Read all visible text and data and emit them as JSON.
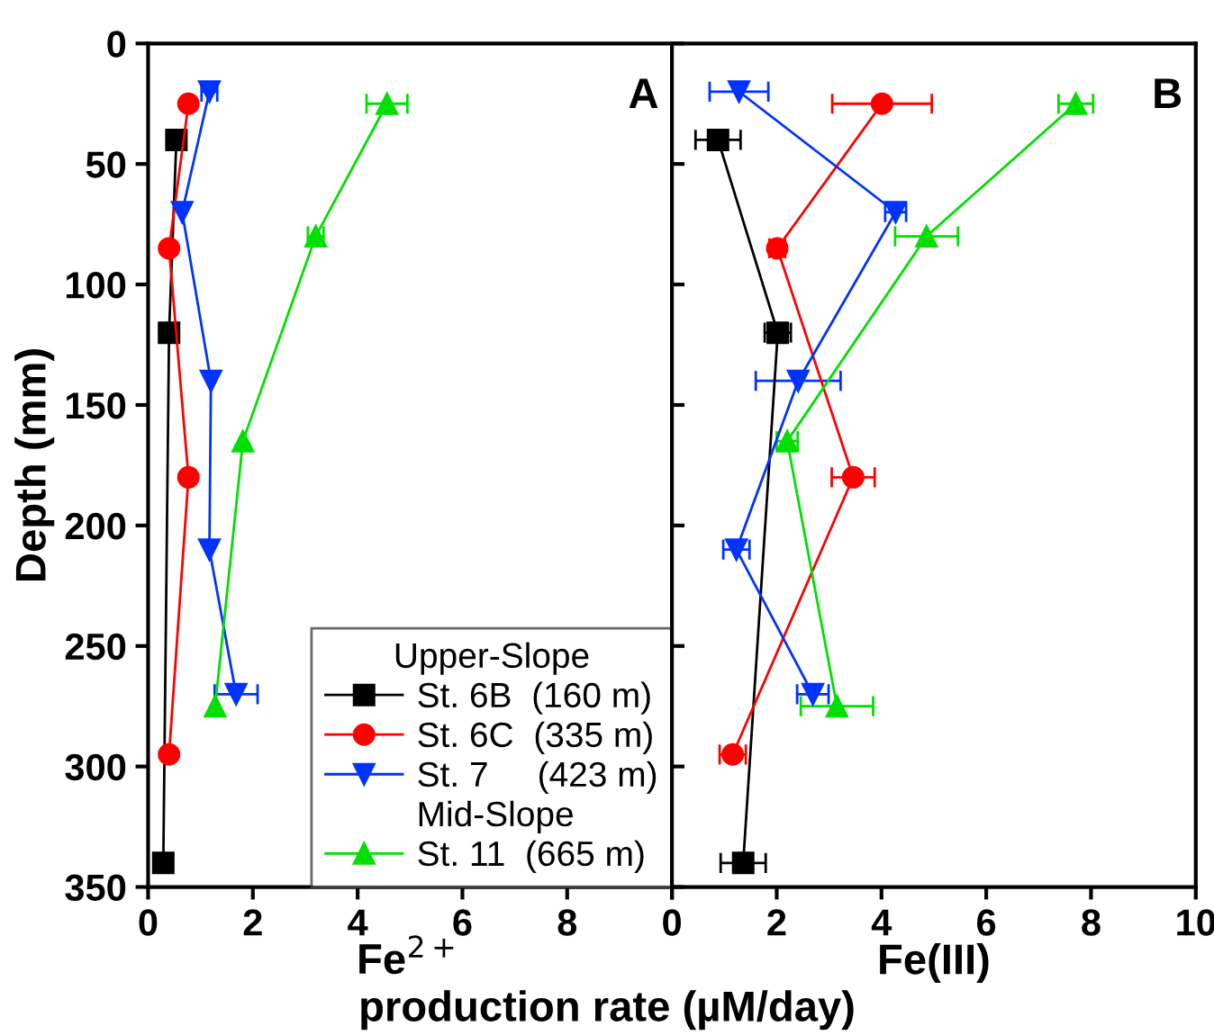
{
  "chart_data": [
    {
      "type": "line",
      "title": "A",
      "xlabel": "Fe$^{2+}$",
      "ylabel": "Depth (mm)",
      "legend_title": "Upper-Slope",
      "annotations": [
        "Mid-Slope"
      ],
      "legend": "bottom right",
      "xlim": [
        0,
        10
      ],
      "xticks": [
        0,
        2,
        4,
        6,
        8,
        {
          "value": 10,
          "label": null
        }
      ],
      "ylim": [
        350,
        0
      ],
      "yticks": [
        0,
        50,
        100,
        150,
        200,
        250,
        300,
        350
      ],
      "grid": false,
      "series": [
        {
          "name": "St. 6B  (160 m)",
          "color": "#000000",
          "marker": "square",
          "x": [
            0.54,
            0.4,
            0.29
          ],
          "values": [
            40,
            120,
            340
          ]
        },
        {
          "name": "St. 6C  (335 m)",
          "color": "#ff0000",
          "marker": "circle",
          "x": [
            0.77,
            0.4,
            0.77,
            0.4
          ],
          "values": [
            25,
            85,
            180,
            295
          ]
        },
        {
          "name": "St. 7     (423 m)",
          "color": "#0033ff",
          "marker": "triangle_down",
          "x": [
            1.17,
            0.65,
            1.2,
            1.17,
            1.68
          ],
          "values": [
            20,
            70,
            140,
            210,
            270
          ],
          "xerrors": [
            0.15,
            null,
            null,
            null,
            0.41
          ]
        },
        {
          "name": "St. 11  (665 m)",
          "color": "#00e000",
          "marker": "triangle",
          "x": [
            4.56,
            3.2,
            1.81,
            1.28
          ],
          "values": [
            25,
            80,
            165,
            275
          ],
          "xerrors": [
            0.39,
            0.15,
            null,
            null
          ]
        }
      ]
    },
    {
      "type": "line",
      "title": "B",
      "xlabel": "Fe(III)",
      "annotations": [
        "production rate (µM/day)"
      ],
      "tick_labels": "x",
      "xlim": [
        0,
        10
      ],
      "xticks": [
        0,
        2,
        4,
        6,
        8,
        10
      ],
      "ylim": [
        350,
        0
      ],
      "yticks": [
        0,
        50,
        100,
        150,
        200,
        250,
        300,
        350
      ],
      "grid": false,
      "series": [
        {
          "color": "#000000",
          "marker": "square",
          "x": [
            0.88,
            2.02,
            1.36
          ],
          "values": [
            40,
            120,
            340
          ],
          "xerrors": [
            0.43,
            0.25,
            0.43
          ]
        },
        {
          "color": "#ff0000",
          "marker": "circle",
          "x": [
            4.01,
            2.01,
            3.46,
            1.16
          ],
          "values": [
            25,
            85,
            180,
            295
          ],
          "xerrors": [
            0.95,
            0.15,
            0.41,
            0.25
          ]
        },
        {
          "color": "#0033ff",
          "marker": "triangle_down",
          "x": [
            1.28,
            4.27,
            2.41,
            1.23,
            2.69
          ],
          "values": [
            20,
            70,
            140,
            210,
            270
          ],
          "xerrors": [
            0.56,
            0.2,
            0.81,
            0.25,
            0.3
          ]
        },
        {
          "color": "#00e000",
          "marker": "triangle",
          "x": [
            7.71,
            4.86,
            2.2,
            3.15
          ],
          "values": [
            25,
            80,
            165,
            275
          ],
          "xerrors": [
            0.33,
            0.6,
            0.2,
            0.69
          ]
        }
      ]
    }
  ]
}
